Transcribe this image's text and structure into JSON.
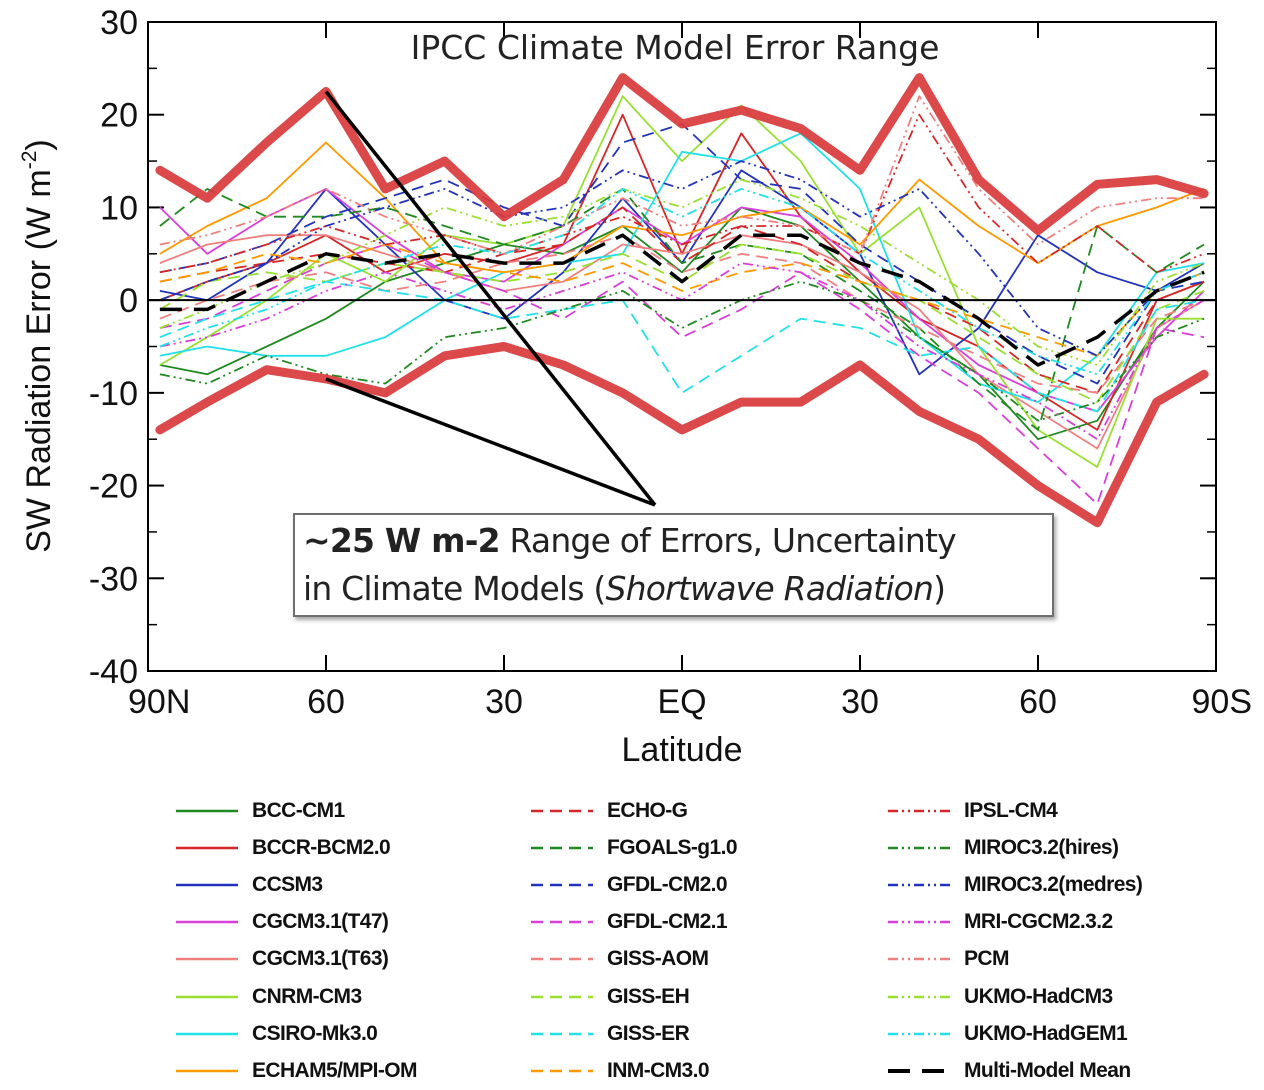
{
  "chart_data": {
    "type": "line",
    "title": "IPCC Climate Model Error Range",
    "xlabel": "Latitude",
    "ylabel": "SW Radiation Error (W m-2)",
    "ylabel_main": "SW Radiation Error (W m",
    "ylabel_sup": "-2",
    "ylabel_end": ")",
    "ylim": [
      -40,
      30
    ],
    "xlim": [
      90,
      -90
    ],
    "x_ticks": [
      {
        "v": 90,
        "label": "90N"
      },
      {
        "v": 60,
        "label": "60"
      },
      {
        "v": 30,
        "label": "30"
      },
      {
        "v": 0,
        "label": "EQ"
      },
      {
        "v": -30,
        "label": "30"
      },
      {
        "v": -60,
        "label": "60"
      },
      {
        "v": -90,
        "label": "90S"
      }
    ],
    "y_ticks": [
      30,
      20,
      10,
      0,
      -10,
      -20,
      -30,
      -40
    ],
    "x": [
      88,
      80,
      70,
      60,
      50,
      40,
      30,
      20,
      10,
      0,
      -10,
      -20,
      -30,
      -40,
      -50,
      -60,
      -70,
      -80,
      -88
    ],
    "envelope": {
      "upper": [
        14,
        11,
        17,
        22.5,
        12,
        15,
        9,
        13,
        24,
        19,
        20.5,
        18.5,
        14,
        24,
        13,
        7.5,
        12.5,
        13,
        11.5
      ],
      "lower": [
        -14,
        -11,
        -7.5,
        -8.5,
        -10,
        -6,
        -5,
        -7,
        -10,
        -14,
        -11,
        -11,
        -7,
        -12,
        -15,
        -20,
        -24,
        -11,
        -8
      ]
    },
    "annotation": {
      "bold": "~25 W m-2",
      "line1": " Range of Errors, Uncertainty",
      "line2a": "in Climate Models (",
      "line2b": "Shortwave Radiation",
      "line2c": ")"
    },
    "series": [
      {
        "name": "BCC-CM1",
        "color": "#1f8a1f",
        "dash": "solid",
        "values": [
          -7,
          -8,
          -5,
          -2,
          2,
          4,
          6,
          5,
          8,
          3,
          10,
          8,
          2,
          -4,
          -8,
          -15,
          -13,
          -3,
          2
        ]
      },
      {
        "name": "BCCR-BCM2.0",
        "color": "#d62728",
        "dash": "solid",
        "values": [
          0,
          2,
          4,
          7,
          3,
          5,
          4,
          6,
          20,
          5,
          18,
          9,
          3,
          -2,
          -5,
          -10,
          -14,
          0,
          2
        ]
      },
      {
        "name": "CCSM3",
        "color": "#2233bb",
        "dash": "solid",
        "values": [
          1,
          0,
          4,
          12,
          6,
          0,
          -2,
          3,
          11,
          4,
          14,
          10,
          5,
          -8,
          -3,
          7,
          3,
          1,
          4
        ]
      },
      {
        "name": "CGCM3.1(T47)",
        "color": "#d93fd9",
        "dash": "solid",
        "values": [
          10,
          5,
          9,
          12,
          7,
          3,
          2,
          6,
          10,
          6,
          10,
          9,
          4,
          -2,
          -7,
          -10,
          -12,
          -4,
          1
        ]
      },
      {
        "name": "CGCM3.1(T63)",
        "color": "#f08080",
        "dash": "solid",
        "values": [
          4,
          6,
          7,
          7,
          5,
          3,
          1,
          2,
          6,
          5,
          7,
          6,
          3,
          -1,
          -8,
          -12,
          -16,
          -3,
          0
        ]
      },
      {
        "name": "CNRM-CM3",
        "color": "#99e033",
        "dash": "solid",
        "values": [
          -7,
          -4,
          0,
          5,
          2,
          7,
          6,
          8,
          22,
          15,
          21,
          15,
          5,
          10,
          -5,
          -14,
          -18,
          -2,
          -2
        ]
      },
      {
        "name": "CSIRO-Mk3.0",
        "color": "#22e0e8",
        "dash": "solid",
        "values": [
          -6,
          -5,
          -6,
          -6,
          -4,
          0,
          3,
          4,
          5,
          16,
          15,
          18,
          12,
          -4,
          -9,
          -11,
          -6,
          3,
          4
        ]
      },
      {
        "name": "ECHAM5/MPI-OM",
        "color": "#ff9900",
        "dash": "solid",
        "values": [
          5,
          8,
          11,
          17,
          11,
          4,
          3,
          4,
          8,
          7,
          9,
          10,
          6,
          13,
          8,
          4,
          8,
          10,
          12
        ]
      },
      {
        "name": "ECHO-G",
        "color": "#d62728",
        "dash": "dashed",
        "values": [
          2,
          3,
          4,
          5,
          4,
          3,
          5,
          6,
          10,
          4,
          8,
          6,
          2,
          0,
          -3,
          -8,
          -10,
          0,
          2
        ]
      },
      {
        "name": "FGOALS-g1.0",
        "color": "#1f8a1f",
        "dash": "dashed",
        "values": [
          8,
          12,
          9,
          9,
          10,
          8,
          6,
          8,
          12,
          4,
          6,
          5,
          1,
          -3,
          -9,
          -14,
          8,
          3,
          6
        ]
      },
      {
        "name": "GFDL-CM2.0",
        "color": "#2233bb",
        "dash": "dashed",
        "values": [
          3,
          4,
          6,
          9,
          11,
          13,
          10,
          8,
          17,
          19,
          13,
          12,
          6,
          2,
          -2,
          -6,
          -9,
          1,
          2
        ]
      },
      {
        "name": "GFDL-CM2.1",
        "color": "#d93fd9",
        "dash": "dashed",
        "values": [
          -3,
          -2,
          1,
          4,
          6,
          3,
          1,
          -2,
          2,
          -4,
          -1,
          3,
          -1,
          -6,
          -10,
          -16,
          -22,
          -3,
          -4
        ]
      },
      {
        "name": "GISS-AOM",
        "color": "#f08080",
        "dash": "dashed",
        "values": [
          -2,
          0,
          2,
          3,
          1,
          2,
          4,
          5,
          7,
          3,
          5,
          4,
          0,
          -3,
          -6,
          -9,
          -10,
          -2,
          0
        ]
      },
      {
        "name": "GISS-EH",
        "color": "#99e033",
        "dash": "dashed",
        "values": [
          -1,
          2,
          3,
          2,
          4,
          3,
          2,
          3,
          5,
          2,
          6,
          5,
          2,
          0,
          -4,
          -8,
          -11,
          -1,
          1
        ]
      },
      {
        "name": "GISS-ER",
        "color": "#22e0e8",
        "dash": "dashed",
        "values": [
          -4,
          -2,
          0,
          2,
          1,
          0,
          -2,
          -1,
          0,
          -10,
          -6,
          -2,
          -3,
          -6,
          -5,
          -10,
          -12,
          -1,
          0
        ]
      },
      {
        "name": "INM-CM3.0",
        "color": "#ff9900",
        "dash": "dashed",
        "values": [
          2,
          3,
          5,
          4,
          6,
          4,
          3,
          2,
          4,
          1,
          3,
          4,
          2,
          0,
          -2,
          -4,
          -6,
          1,
          3
        ]
      },
      {
        "name": "IPSL-CM4",
        "color": "#d62728",
        "dash": "dashdot",
        "values": [
          3,
          4,
          6,
          8,
          6,
          7,
          5,
          7,
          9,
          6,
          8,
          8,
          5,
          20,
          10,
          4,
          8,
          3,
          5
        ]
      },
      {
        "name": "MIROC3.2(hires)",
        "color": "#1f8a1f",
        "dash": "dashdot",
        "values": [
          -8,
          -9,
          -6,
          -8,
          -9,
          -4,
          -3,
          -1,
          1,
          -3,
          0,
          2,
          0,
          -4,
          -8,
          -13,
          -11,
          -4,
          -2
        ]
      },
      {
        "name": "MIROC3.2(medres)",
        "color": "#2233bb",
        "dash": "dashdot",
        "values": [
          0,
          2,
          4,
          8,
          10,
          12,
          9,
          10,
          14,
          12,
          15,
          13,
          9,
          12,
          5,
          -3,
          -6,
          1,
          3
        ]
      },
      {
        "name": "MRI-CGCM2.3.2",
        "color": "#d93fd9",
        "dash": "dashdot",
        "values": [
          -5,
          -4,
          -2,
          1,
          3,
          1,
          -1,
          1,
          3,
          0,
          4,
          3,
          0,
          -5,
          -8,
          -11,
          -15,
          -3,
          0
        ]
      },
      {
        "name": "PCM",
        "color": "#f08080",
        "dash": "dashdot",
        "values": [
          6,
          7,
          9,
          12,
          9,
          7,
          5,
          8,
          11,
          8,
          9,
          8,
          5,
          22,
          12,
          6,
          10,
          11,
          11
        ]
      },
      {
        "name": "UKMO-HadCM3",
        "color": "#99e033",
        "dash": "dashdot",
        "values": [
          -3,
          -1,
          2,
          4,
          7,
          10,
          8,
          9,
          12,
          10,
          13,
          11,
          8,
          4,
          0,
          -5,
          -7,
          2,
          4
        ]
      },
      {
        "name": "UKMO-HadGEM1",
        "color": "#22e0e8",
        "dash": "dashdot",
        "values": [
          -5,
          -3,
          -1,
          2,
          4,
          6,
          5,
          7,
          12,
          9,
          12,
          10,
          5,
          1,
          -3,
          -6,
          -8,
          1,
          3
        ]
      },
      {
        "name": "Multi-Model Mean",
        "color": "#000000",
        "dash": "mean",
        "values": [
          -1,
          -1,
          2,
          5,
          4,
          5,
          4,
          4,
          7,
          2,
          7,
          7,
          4,
          2,
          -2,
          -7,
          -4,
          1,
          3
        ]
      }
    ]
  }
}
